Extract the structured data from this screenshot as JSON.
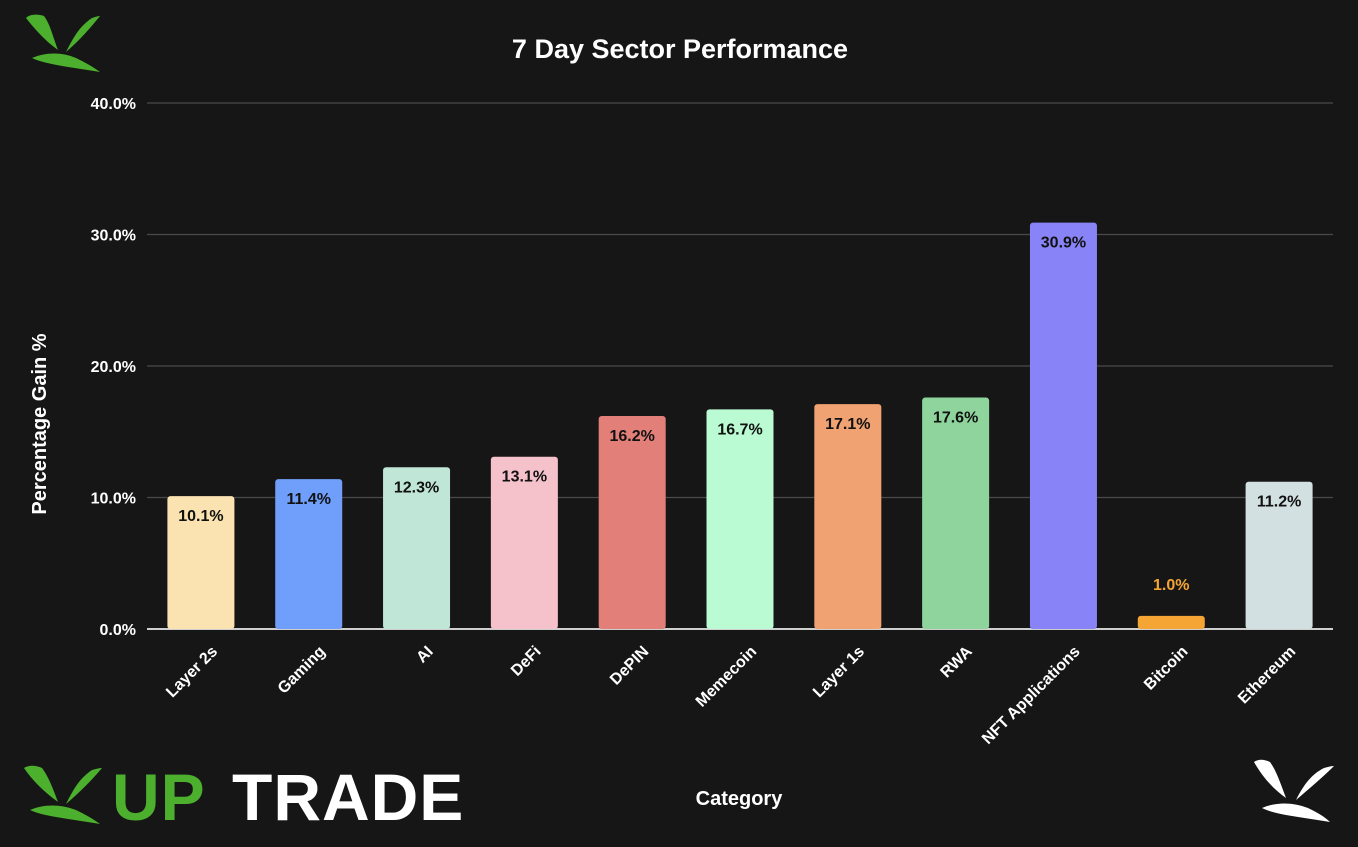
{
  "chart_data": {
    "type": "bar",
    "title": "7 Day Sector Performance",
    "xlabel": "Category",
    "ylabel": "Percentage Gain %",
    "ylim": [
      0,
      40
    ],
    "yticks": [
      0,
      10,
      20,
      30,
      40
    ],
    "ytick_labels": [
      "0.0%",
      "10.0%",
      "20.0%",
      "30.0%",
      "40.0%"
    ],
    "grid": true,
    "legend": "none",
    "categories": [
      "Layer 2s",
      "Gaming",
      "AI",
      "DeFi",
      "DePIN",
      "Memecoin",
      "Layer 1s",
      "RWA",
      "NFT Applications",
      "Bitcoin",
      "Ethereum"
    ],
    "values": [
      10.1,
      11.4,
      12.3,
      13.1,
      16.2,
      16.7,
      17.1,
      17.6,
      30.9,
      1.0,
      11.2
    ],
    "value_labels": [
      "10.1%",
      "11.4%",
      "12.3%",
      "13.1%",
      "16.2%",
      "16.7%",
      "17.1%",
      "17.6%",
      "30.9%",
      "1.0%",
      "11.2%"
    ],
    "colors": [
      "#fbe3b1",
      "#6f9ffb",
      "#bfe6d7",
      "#f5c2cc",
      "#e37f79",
      "#bbfbd3",
      "#f0a273",
      "#8ed49c",
      "#8883f6",
      "#f5a534",
      "#d3e0e1"
    ],
    "label_colors": [
      "#111111",
      "#111111",
      "#111111",
      "#111111",
      "#111111",
      "#111111",
      "#111111",
      "#111111",
      "#111111",
      "#f5a534",
      "#111111"
    ]
  },
  "branding": {
    "logo_word_part1": "UP",
    "logo_word_part2": "TRADE",
    "logo_green": "#4caf2e",
    "bird_icon_top": "bird-icon-green",
    "bird_icon_bottom_right": "bird-icon-white"
  }
}
